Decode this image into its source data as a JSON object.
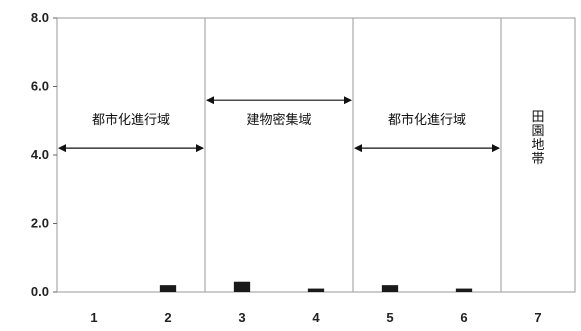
{
  "chart_data": {
    "type": "bar",
    "title": "",
    "xlabel": "",
    "ylabel": "",
    "categories": [
      "1",
      "2",
      "3",
      "4",
      "5",
      "6",
      "7"
    ],
    "values": [
      0.0,
      0.2,
      0.3,
      0.1,
      0.2,
      0.1,
      0.0
    ],
    "ylim": [
      0,
      8
    ],
    "y_ticks": [
      "0.0",
      "2.0",
      "4.0",
      "6.0",
      "8.0"
    ],
    "grid": "vertical",
    "bar_color": "#1a1a1a",
    "annotations": [
      {
        "text": "都市化進行域",
        "from": 0.5,
        "to": 2.5,
        "y": 4.2,
        "label_y": 4.9
      },
      {
        "text": "建物密集域",
        "from": 2.5,
        "to": 4.5,
        "y": 5.6,
        "label_y": 4.9
      },
      {
        "text": "都市化進行域",
        "from": 4.5,
        "to": 6.5,
        "y": 4.2,
        "label_y": 4.9
      },
      {
        "text": "田園地帯",
        "vertical": true,
        "at": 7,
        "y_top": 5.0
      }
    ]
  }
}
